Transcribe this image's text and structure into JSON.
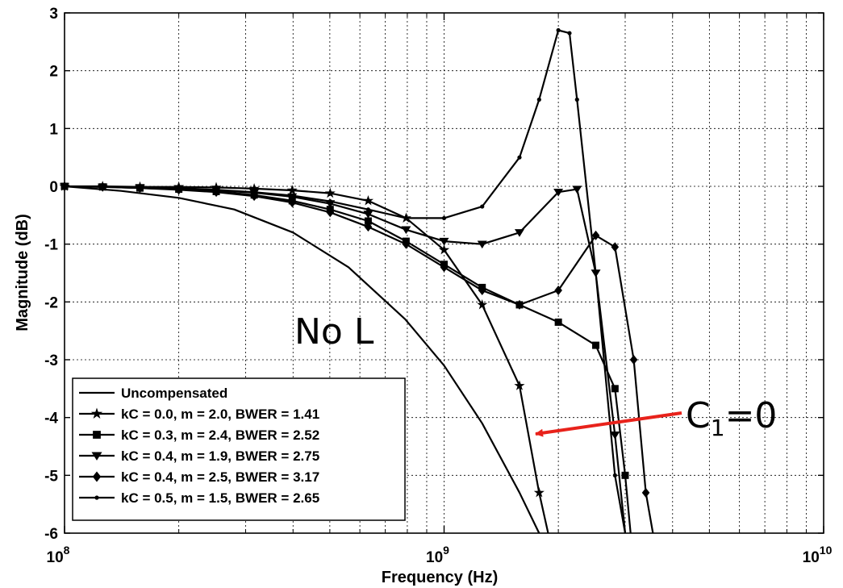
{
  "chart_data": {
    "type": "line",
    "xlabel": "Frequency (Hz)",
    "ylabel": "Magnitude (dB)",
    "xscale": "log",
    "xlim": [
      100000000,
      10000000000
    ],
    "ylim": [
      -6,
      3
    ],
    "x_ticks": [
      {
        "value": 100000000,
        "base": "10",
        "exp": "8"
      },
      {
        "value": 1000000000,
        "base": "10",
        "exp": "9"
      },
      {
        "value": 10000000000,
        "base": "10",
        "exp": "10"
      }
    ],
    "y_ticks": [
      {
        "value": 3,
        "label": "3"
      },
      {
        "value": 2,
        "label": "2"
      },
      {
        "value": 1,
        "label": "1"
      },
      {
        "value": 0,
        "label": "0"
      },
      {
        "value": -1,
        "label": "-1"
      },
      {
        "value": -2,
        "label": "-2"
      },
      {
        "value": -3,
        "label": "-3"
      },
      {
        "value": -4,
        "label": "-4"
      },
      {
        "value": -5,
        "label": "-5"
      },
      {
        "value": -6,
        "label": "-6"
      }
    ],
    "grid": true,
    "legend_position": "bottom-left",
    "series": [
      {
        "name": "Uncompensated",
        "marker": "none",
        "x": [
          100000000.0,
          141000000.0,
          200000000.0,
          280000000.0,
          400000000.0,
          560000000.0,
          790000000.0,
          1000000000.0,
          1260000000.0,
          1580000000.0,
          1780000000.0
        ],
        "y": [
          0,
          -0.08,
          -0.2,
          -0.4,
          -0.8,
          -1.4,
          -2.3,
          -3.1,
          -4.1,
          -5.3,
          -6.0
        ]
      },
      {
        "name": "kC = 0.0, m = 2.0, BWER = 1.41",
        "marker": "star",
        "x": [
          100000000.0,
          126000000.0,
          158000000.0,
          200000000.0,
          251000000.0,
          316000000.0,
          398000000.0,
          501000000.0,
          631000000.0,
          794000000.0,
          1000000000.0,
          1260000000.0,
          1580000000.0,
          1780000000.0,
          1880000000.0
        ],
        "y": [
          0,
          0,
          -0.01,
          -0.01,
          -0.02,
          -0.04,
          -0.07,
          -0.12,
          -0.25,
          -0.55,
          -1.1,
          -2.05,
          -3.45,
          -5.3,
          -6.0
        ]
      },
      {
        "name": "kC = 0.3, m = 2.4, BWER = 2.52",
        "marker": "square",
        "x": [
          100000000.0,
          126000000.0,
          158000000.0,
          200000000.0,
          251000000.0,
          316000000.0,
          398000000.0,
          501000000.0,
          631000000.0,
          794000000.0,
          1000000000.0,
          1260000000.0,
          1580000000.0,
          2000000000.0,
          2510000000.0,
          2820000000.0,
          3000000000.0,
          3100000000.0
        ],
        "y": [
          0,
          -0.01,
          -0.03,
          -0.05,
          -0.09,
          -0.15,
          -0.25,
          -0.4,
          -0.6,
          -0.95,
          -1.35,
          -1.75,
          -2.05,
          -2.35,
          -2.75,
          -3.5,
          -5.0,
          -6.0
        ]
      },
      {
        "name": "kC = 0.4, m = 1.9, BWER = 2.75",
        "marker": "triangle-down",
        "x": [
          100000000.0,
          126000000.0,
          158000000.0,
          200000000.0,
          251000000.0,
          316000000.0,
          398000000.0,
          501000000.0,
          631000000.0,
          794000000.0,
          1000000000.0,
          1260000000.0,
          1580000000.0,
          2000000000.0,
          2240000000.0,
          2510000000.0,
          2820000000.0,
          3000000000.0
        ],
        "y": [
          0,
          -0.01,
          -0.02,
          -0.04,
          -0.07,
          -0.11,
          -0.18,
          -0.3,
          -0.48,
          -0.75,
          -0.95,
          -1.0,
          -0.8,
          -0.1,
          -0.05,
          -1.5,
          -4.3,
          -6.0
        ]
      },
      {
        "name": "kC = 0.4, m = 2.5, BWER = 3.17",
        "marker": "diamond",
        "x": [
          100000000.0,
          126000000.0,
          158000000.0,
          200000000.0,
          251000000.0,
          316000000.0,
          398000000.0,
          501000000.0,
          631000000.0,
          794000000.0,
          1000000000.0,
          1260000000.0,
          1580000000.0,
          2000000000.0,
          2510000000.0,
          2820000000.0,
          3160000000.0,
          3400000000.0,
          3550000000.0
        ],
        "y": [
          0,
          -0.01,
          -0.03,
          -0.06,
          -0.1,
          -0.17,
          -0.28,
          -0.45,
          -0.7,
          -1.0,
          -1.4,
          -1.8,
          -2.05,
          -1.8,
          -0.85,
          -1.05,
          -3.0,
          -5.3,
          -6.0
        ]
      },
      {
        "name": "kC = 0.5, m = 1.5, BWER = 2.65",
        "marker": "x",
        "x": [
          100000000.0,
          126000000.0,
          158000000.0,
          200000000.0,
          251000000.0,
          316000000.0,
          398000000.0,
          501000000.0,
          631000000.0,
          794000000.0,
          1000000000.0,
          1260000000.0,
          1580000000.0,
          1780000000.0,
          2000000000.0,
          2140000000.0,
          2240000000.0,
          2510000000.0,
          2820000000.0,
          3000000000.0
        ],
        "y": [
          0,
          -0.01,
          -0.02,
          -0.03,
          -0.06,
          -0.1,
          -0.16,
          -0.26,
          -0.4,
          -0.55,
          -0.55,
          -0.35,
          0.5,
          1.5,
          2.7,
          2.65,
          1.5,
          -1.5,
          -5.0,
          -6.0
        ]
      }
    ],
    "annotations": [
      {
        "text": "No L",
        "x": 500000000,
        "y": -2.5
      },
      {
        "text": "=0",
        "symbol": "C",
        "subscript": "1",
        "arrow_to": {
          "x": 1700000000,
          "y": -4.3
        },
        "arrow_color": "#e8221b"
      }
    ]
  }
}
